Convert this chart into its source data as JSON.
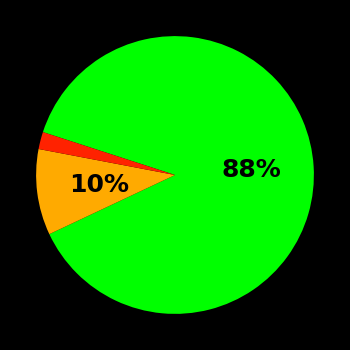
{
  "slices": [
    88,
    10,
    2
  ],
  "colors": [
    "#00ff00",
    "#ffaa00",
    "#ff2200"
  ],
  "labels": [
    "88%",
    "10%",
    ""
  ],
  "background_color": "#000000",
  "label_fontsize": 18,
  "label_fontweight": "bold",
  "startangle": 162,
  "figsize": [
    3.5,
    3.5
  ],
  "dpi": 100
}
